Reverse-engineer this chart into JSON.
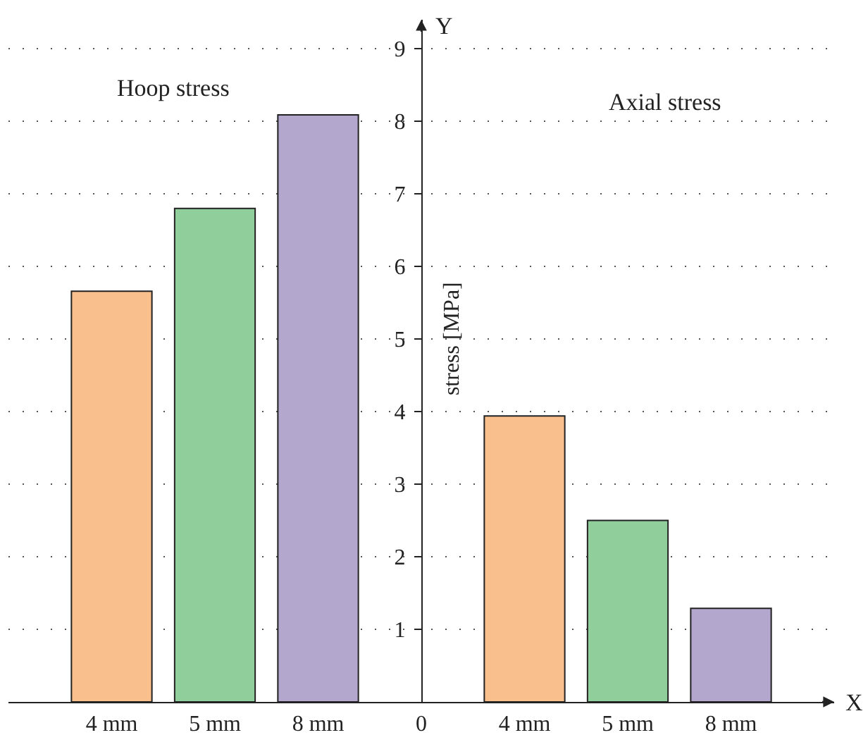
{
  "chart_data": {
    "type": "bar",
    "xlabel": "X",
    "ylabel": "stress [MPa]",
    "categories": [
      "4 mm",
      "5 mm",
      "8 mm",
      "0",
      "4 mm",
      "5 mm",
      "8 mm"
    ],
    "values": [
      5.66,
      6.8,
      8.09,
      null,
      3.94,
      2.5,
      1.29
    ],
    "colors": [
      "#f9c08e",
      "#90ce9c",
      "#b3a7ce",
      null,
      "#f9c08e",
      "#90ce9c",
      "#b3a7ce"
    ],
    "ylim": [
      0,
      9.4
    ],
    "yticks": [
      1,
      2,
      3,
      4,
      5,
      6,
      7,
      8,
      9
    ],
    "grid": "y",
    "legend": false,
    "annotations": [
      "Y",
      "Hoop stress",
      "Axial stress"
    ]
  }
}
